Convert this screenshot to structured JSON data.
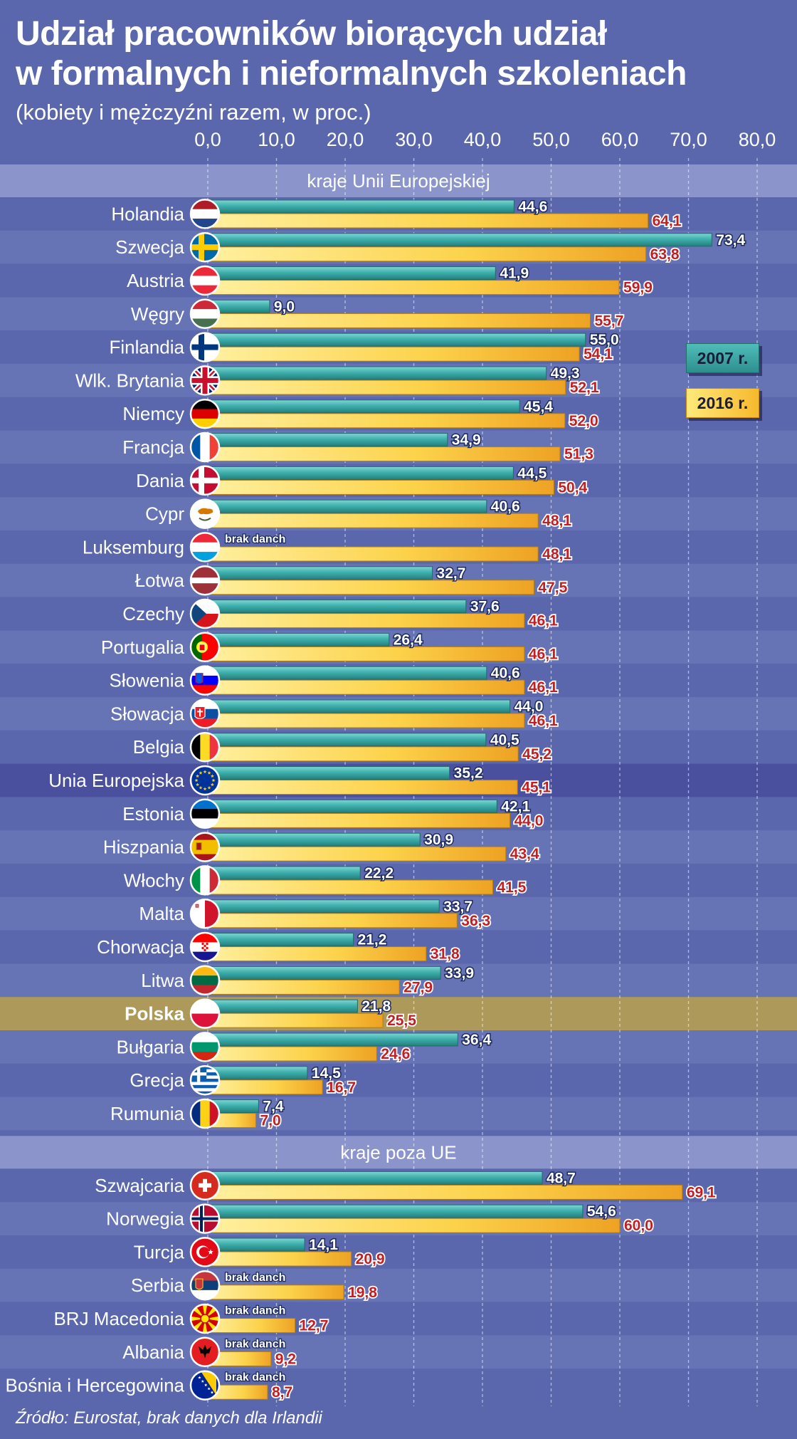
{
  "title_line1": "Udział pracowników biorących udział",
  "title_line2": "w formalnych i nieformalnych szkoleniach",
  "subtitle": "(kobiety i mężczyźni razem, w proc.)",
  "source": "Źródło: Eurostat, brak danych dla Irlandii",
  "legend": {
    "y2007": "2007 r.",
    "y2016": "2016 r."
  },
  "colors": {
    "background": "#5a67ad",
    "row_alt": "#6673b4",
    "section_header": "#8c95cb",
    "eu_highlight": "#4a4f9e",
    "poland_highlight": "#ad9a5a",
    "bar_2007": "#3aa5a3",
    "bar_2016": "#f8c23a",
    "label_2016": "#c02024"
  },
  "chart_data": {
    "type": "bar",
    "orientation": "horizontal",
    "title": "Udział pracowników biorących udział w formalnych i nieformalnych szkoleniach",
    "subtitle": "(kobiety i mężczyźni razem, w proc.)",
    "xlim": [
      0,
      80
    ],
    "x_ticks": [
      "0,0",
      "10,0",
      "20,0",
      "30,0",
      "40,0",
      "50,0",
      "60,0",
      "70,0",
      "80,0"
    ],
    "grid": true,
    "legend_placement": "right",
    "no_data_label": "brak danch",
    "series": [
      {
        "name": "2007 r.",
        "color": "#3aa5a3"
      },
      {
        "name": "2016 r.",
        "color": "#f8c23a"
      }
    ],
    "sections": [
      {
        "title": "kraje Unii Europejskiej",
        "rows": [
          {
            "name": "Holandia",
            "flag": "netherlands-flag-icon",
            "v2007": 44.6,
            "v2016": 64.1
          },
          {
            "name": "Szwecja",
            "flag": "sweden-flag-icon",
            "v2007": 73.4,
            "v2016": 63.8
          },
          {
            "name": "Austria",
            "flag": "austria-flag-icon",
            "v2007": 41.9,
            "v2016": 59.9
          },
          {
            "name": "Węgry",
            "flag": "hungary-flag-icon",
            "v2007": 9.0,
            "v2016": 55.7
          },
          {
            "name": "Finlandia",
            "flag": "finland-flag-icon",
            "v2007": 55.0,
            "v2016": 54.1
          },
          {
            "name": "Wlk. Brytania",
            "flag": "uk-flag-icon",
            "v2007": 49.3,
            "v2016": 52.1
          },
          {
            "name": "Niemcy",
            "flag": "germany-flag-icon",
            "v2007": 45.4,
            "v2016": 52.0
          },
          {
            "name": "Francja",
            "flag": "france-flag-icon",
            "v2007": 34.9,
            "v2016": 51.3
          },
          {
            "name": "Dania",
            "flag": "denmark-flag-icon",
            "v2007": 44.5,
            "v2016": 50.4
          },
          {
            "name": "Cypr",
            "flag": "cyprus-flag-icon",
            "v2007": 40.6,
            "v2016": 48.1
          },
          {
            "name": "Luksemburg",
            "flag": "luxembourg-flag-icon",
            "v2007": null,
            "v2016": 48.1
          },
          {
            "name": "Łotwa",
            "flag": "latvia-flag-icon",
            "v2007": 32.7,
            "v2016": 47.5
          },
          {
            "name": "Czechy",
            "flag": "czechia-flag-icon",
            "v2007": 37.6,
            "v2016": 46.1
          },
          {
            "name": "Portugalia",
            "flag": "portugal-flag-icon",
            "v2007": 26.4,
            "v2016": 46.1
          },
          {
            "name": "Słowenia",
            "flag": "slovenia-flag-icon",
            "v2007": 40.6,
            "v2016": 46.1
          },
          {
            "name": "Słowacja",
            "flag": "slovakia-flag-icon",
            "v2007": 44.0,
            "v2016": 46.1
          },
          {
            "name": "Belgia",
            "flag": "belgium-flag-icon",
            "v2007": 40.5,
            "v2016": 45.2
          },
          {
            "name": "Unia Europejska",
            "flag": "eu-flag-icon",
            "v2007": 35.2,
            "v2016": 45.1,
            "highlight": "eu"
          },
          {
            "name": "Estonia",
            "flag": "estonia-flag-icon",
            "v2007": 42.1,
            "v2016": 44.0
          },
          {
            "name": "Hiszpania",
            "flag": "spain-flag-icon",
            "v2007": 30.9,
            "v2016": 43.4
          },
          {
            "name": "Włochy",
            "flag": "italy-flag-icon",
            "v2007": 22.2,
            "v2016": 41.5
          },
          {
            "name": "Malta",
            "flag": "malta-flag-icon",
            "v2007": 33.7,
            "v2016": 36.3
          },
          {
            "name": "Chorwacja",
            "flag": "croatia-flag-icon",
            "v2007": 21.2,
            "v2016": 31.8
          },
          {
            "name": "Litwa",
            "flag": "lithuania-flag-icon",
            "v2007": 33.9,
            "v2016": 27.9
          },
          {
            "name": "Polska",
            "flag": "poland-flag-icon",
            "v2007": 21.8,
            "v2016": 25.5,
            "highlight": "poland"
          },
          {
            "name": "Bułgaria",
            "flag": "bulgaria-flag-icon",
            "v2007": 36.4,
            "v2016": 24.6
          },
          {
            "name": "Grecja",
            "flag": "greece-flag-icon",
            "v2007": 14.5,
            "v2016": 16.7
          },
          {
            "name": "Rumunia",
            "flag": "romania-flag-icon",
            "v2007": 7.4,
            "v2016": 7.0
          }
        ]
      },
      {
        "title": "kraje poza UE",
        "rows": [
          {
            "name": "Szwajcaria",
            "flag": "switzerland-flag-icon",
            "v2007": 48.7,
            "v2016": 69.1
          },
          {
            "name": "Norwegia",
            "flag": "norway-flag-icon",
            "v2007": 54.6,
            "v2016": 60.0
          },
          {
            "name": "Turcja",
            "flag": "turkey-flag-icon",
            "v2007": 14.1,
            "v2016": 20.9
          },
          {
            "name": "Serbia",
            "flag": "serbia-flag-icon",
            "v2007": null,
            "v2016": 19.8
          },
          {
            "name": "BRJ Macedonia",
            "flag": "macedonia-flag-icon",
            "v2007": null,
            "v2016": 12.7
          },
          {
            "name": "Albania",
            "flag": "albania-flag-icon",
            "v2007": null,
            "v2016": 9.2
          },
          {
            "name": "Bośnia i Hercegowina",
            "flag": "bosnia-flag-icon",
            "v2007": null,
            "v2016": 8.7
          }
        ]
      }
    ]
  }
}
